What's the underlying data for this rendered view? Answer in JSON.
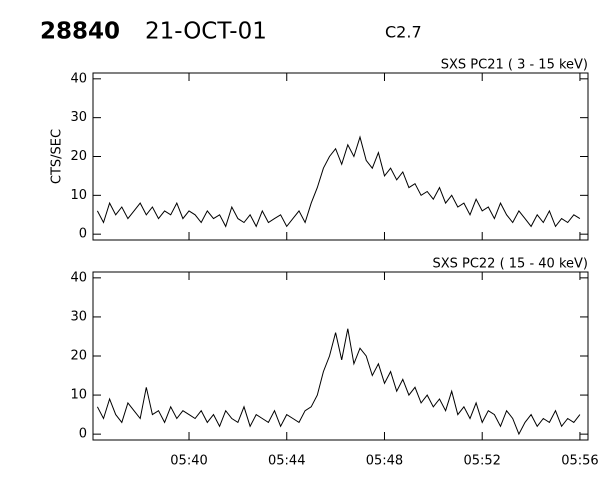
{
  "header": {
    "id": "28840",
    "date": "21-OCT-01",
    "class": "C2.7"
  },
  "chart_data": [
    {
      "type": "line",
      "title": "SXS PC21  (  3 - 15 keV)",
      "ylabel": "CTS/SEC",
      "color": "#000000",
      "x": [
        336.25,
        336.5,
        336.75,
        337,
        337.25,
        337.5,
        337.75,
        338,
        338.25,
        338.5,
        338.75,
        339,
        339.25,
        339.5,
        339.75,
        340,
        340.25,
        340.5,
        340.75,
        341,
        341.25,
        341.5,
        341.75,
        342,
        342.25,
        342.5,
        342.75,
        343,
        343.25,
        343.5,
        343.75,
        344,
        344.25,
        344.5,
        344.75,
        345,
        345.25,
        345.5,
        345.75,
        346,
        346.25,
        346.5,
        346.75,
        347,
        347.25,
        347.5,
        347.75,
        348,
        348.25,
        348.5,
        348.75,
        349,
        349.25,
        349.5,
        349.75,
        350,
        350.25,
        350.5,
        350.75,
        351,
        351.25,
        351.5,
        351.75,
        352,
        352.25,
        352.5,
        352.75,
        353,
        353.25,
        353.5,
        353.75,
        354,
        354.25,
        354.5,
        354.75,
        355,
        355.25,
        355.5,
        355.75,
        356
      ],
      "values": [
        6,
        3,
        8,
        5,
        7,
        4,
        6,
        8,
        5,
        7,
        4,
        6,
        5,
        8,
        4,
        6,
        5,
        3,
        6,
        4,
        5,
        2,
        7,
        4,
        3,
        5,
        2,
        6,
        3,
        4,
        5,
        2,
        4,
        6,
        3,
        8,
        12,
        17,
        20,
        22,
        18,
        23,
        20,
        25,
        19,
        17,
        21,
        15,
        17,
        14,
        16,
        12,
        13,
        10,
        11,
        9,
        12,
        8,
        10,
        7,
        8,
        5,
        9,
        6,
        7,
        4,
        8,
        5,
        3,
        6,
        4,
        2,
        5,
        3,
        6,
        2,
        4,
        3,
        5,
        4
      ],
      "xlim": [
        336.07,
        356.33
      ],
      "ylim": [
        -1.5,
        41.5
      ],
      "yticks": [
        0,
        10,
        20,
        30,
        40
      ]
    },
    {
      "type": "line",
      "title": "SXS PC22  ( 15 - 40 keV)",
      "color": "#000000",
      "x": [
        336.25,
        336.5,
        336.75,
        337,
        337.25,
        337.5,
        337.75,
        338,
        338.25,
        338.5,
        338.75,
        339,
        339.25,
        339.5,
        339.75,
        340,
        340.25,
        340.5,
        340.75,
        341,
        341.25,
        341.5,
        341.75,
        342,
        342.25,
        342.5,
        342.75,
        343,
        343.25,
        343.5,
        343.75,
        344,
        344.25,
        344.5,
        344.75,
        345,
        345.25,
        345.5,
        345.75,
        346,
        346.25,
        346.5,
        346.75,
        347,
        347.25,
        347.5,
        347.75,
        348,
        348.25,
        348.5,
        348.75,
        349,
        349.25,
        349.5,
        349.75,
        350,
        350.25,
        350.5,
        350.75,
        351,
        351.25,
        351.5,
        351.75,
        352,
        352.25,
        352.5,
        352.75,
        353,
        353.25,
        353.5,
        353.75,
        354,
        354.25,
        354.5,
        354.75,
        355,
        355.25,
        355.5,
        355.75,
        356
      ],
      "values": [
        7,
        4,
        9,
        5,
        3,
        8,
        6,
        4,
        12,
        5,
        6,
        3,
        7,
        4,
        6,
        5,
        4,
        6,
        3,
        5,
        2,
        6,
        4,
        3,
        7,
        2,
        5,
        4,
        3,
        6,
        2,
        5,
        4,
        3,
        6,
        7,
        10,
        16,
        20,
        26,
        19,
        27,
        18,
        22,
        20,
        15,
        18,
        13,
        16,
        11,
        14,
        10,
        12,
        8,
        10,
        7,
        9,
        6,
        11,
        5,
        7,
        4,
        8,
        3,
        6,
        5,
        2,
        6,
        4,
        0,
        3,
        5,
        2,
        4,
        3,
        6,
        2,
        4,
        3,
        5
      ],
      "xlim": [
        336.07,
        356.33
      ],
      "ylim": [
        -1.5,
        41.5
      ],
      "yticks": [
        0,
        10,
        20,
        30,
        40
      ],
      "xticks": [
        {
          "value": 340,
          "label": "05:40"
        },
        {
          "value": 344,
          "label": "05:44"
        },
        {
          "value": 348,
          "label": "05:48"
        },
        {
          "value": 352,
          "label": "05:52"
        },
        {
          "value": 356,
          "label": "05:56"
        }
      ]
    }
  ]
}
